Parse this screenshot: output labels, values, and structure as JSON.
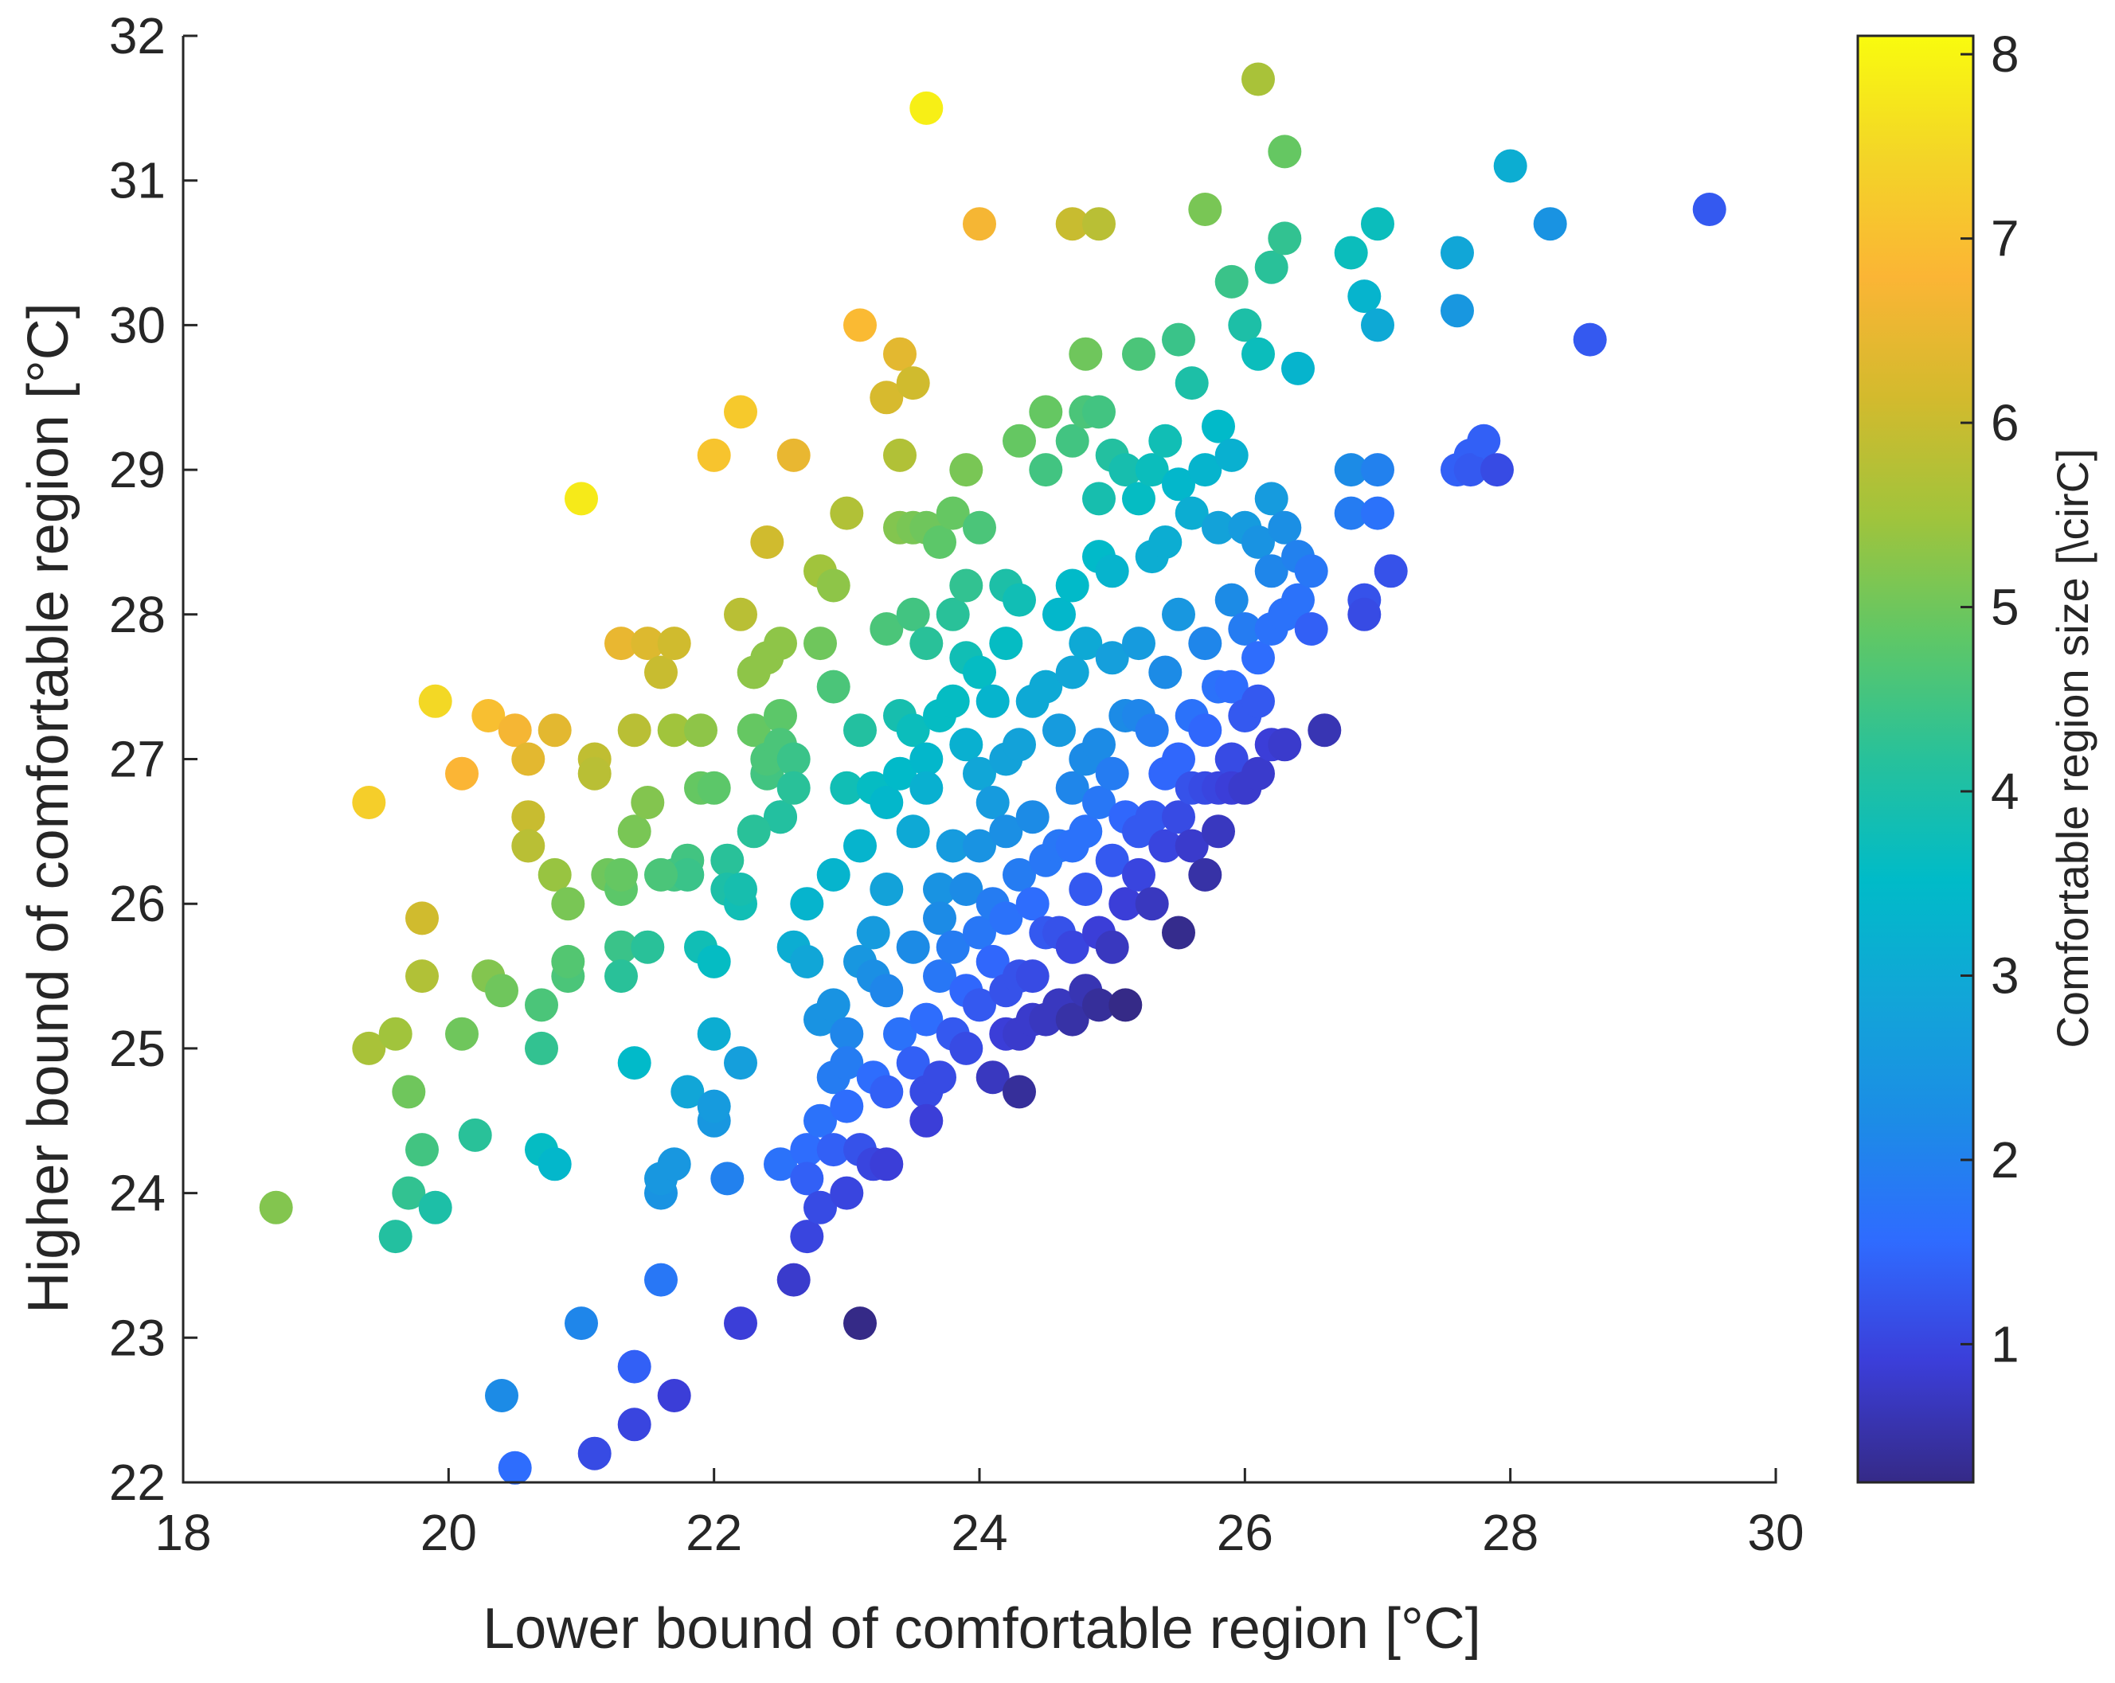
{
  "chart_data": {
    "type": "scatter",
    "title": "",
    "xlabel": "Lower bound of comfortable region [°C]",
    "ylabel": "Higher bound of comfortable region [°C]",
    "xlim": [
      18,
      30
    ],
    "ylim": [
      22,
      32
    ],
    "xticks": [
      "18",
      "20",
      "22",
      "24",
      "26",
      "28",
      "30"
    ],
    "yticks": [
      "22",
      "23",
      "24",
      "25",
      "26",
      "27",
      "28",
      "29",
      "30",
      "31",
      "32"
    ],
    "grid": false,
    "colorbar": {
      "label": "Comfortable region size [\\cirC]",
      "range": [
        0.25,
        8.1
      ],
      "ticks": [
        "1",
        "2",
        "3",
        "4",
        "5",
        "6",
        "7",
        "8"
      ],
      "colors": [
        "#352A87",
        "#3B3ED9",
        "#2F6BFF",
        "#1C8CE6",
        "#12A5D8",
        "#00BBC8",
        "#27C19B",
        "#5EC767",
        "#A0C43C",
        "#D3BA2D",
        "#FBB535",
        "#F3D527",
        "#F9FB0E"
      ]
    },
    "points": [
      [
        18.7,
        23.9
      ],
      [
        19.4,
        26.7
      ],
      [
        19.4,
        25.0
      ],
      [
        19.6,
        25.1
      ],
      [
        19.6,
        23.7
      ],
      [
        19.7,
        24.7
      ],
      [
        19.7,
        24.0
      ],
      [
        19.8,
        25.9
      ],
      [
        19.8,
        25.5
      ],
      [
        19.8,
        24.3
      ],
      [
        19.9,
        27.4
      ],
      [
        19.9,
        23.9
      ],
      [
        20.1,
        26.9
      ],
      [
        20.1,
        25.1
      ],
      [
        20.2,
        24.4
      ],
      [
        20.3,
        27.3
      ],
      [
        20.3,
        25.5
      ],
      [
        20.4,
        25.4
      ],
      [
        20.4,
        22.6
      ],
      [
        20.5,
        22.1
      ],
      [
        20.5,
        27.2
      ],
      [
        20.6,
        27.0
      ],
      [
        20.6,
        26.6
      ],
      [
        20.6,
        26.4
      ],
      [
        20.7,
        25.3
      ],
      [
        20.7,
        25.0
      ],
      [
        20.7,
        24.3
      ],
      [
        20.8,
        27.2
      ],
      [
        20.8,
        26.2
      ],
      [
        20.8,
        24.2
      ],
      [
        20.9,
        26.0
      ],
      [
        20.9,
        25.5
      ],
      [
        20.9,
        25.6
      ],
      [
        21.0,
        23.1
      ],
      [
        21.0,
        28.8
      ],
      [
        21.1,
        27.0
      ],
      [
        21.1,
        26.9
      ],
      [
        21.1,
        22.2
      ],
      [
        21.2,
        26.2
      ],
      [
        21.3,
        27.8
      ],
      [
        21.3,
        25.7
      ],
      [
        21.3,
        25.5
      ],
      [
        21.3,
        26.1
      ],
      [
        21.4,
        22.4
      ],
      [
        21.4,
        24.9
      ],
      [
        21.4,
        27.2
      ],
      [
        21.4,
        26.5
      ],
      [
        21.4,
        22.8
      ],
      [
        21.5,
        26.7
      ],
      [
        21.5,
        27.8
      ],
      [
        21.5,
        25.7
      ],
      [
        21.6,
        27.6
      ],
      [
        21.6,
        23.4
      ],
      [
        21.6,
        24.0
      ],
      [
        21.6,
        24.1
      ],
      [
        21.7,
        27.8
      ],
      [
        21.7,
        22.6
      ],
      [
        21.7,
        27.2
      ],
      [
        21.7,
        26.2
      ],
      [
        21.7,
        24.2
      ],
      [
        21.8,
        26.3
      ],
      [
        21.8,
        26.2
      ],
      [
        21.8,
        24.7
      ],
      [
        21.9,
        26.8
      ],
      [
        21.9,
        25.7
      ],
      [
        21.9,
        27.2
      ],
      [
        22.0,
        26.8
      ],
      [
        22.0,
        25.6
      ],
      [
        22.0,
        25.1
      ],
      [
        22.0,
        24.5
      ],
      [
        22.0,
        24.6
      ],
      [
        22.0,
        29.1
      ],
      [
        22.1,
        26.3
      ],
      [
        22.1,
        26.1
      ],
      [
        22.1,
        24.1
      ],
      [
        22.2,
        29.4
      ],
      [
        22.2,
        26.0
      ],
      [
        22.2,
        26.1
      ],
      [
        22.2,
        24.9
      ],
      [
        22.2,
        28.0
      ],
      [
        22.2,
        23.1
      ],
      [
        22.3,
        27.2
      ],
      [
        22.3,
        27.6
      ],
      [
        22.4,
        26.9
      ],
      [
        22.4,
        27.7
      ],
      [
        22.4,
        27.0
      ],
      [
        22.4,
        28.5
      ],
      [
        22.5,
        26.6
      ],
      [
        22.5,
        27.3
      ],
      [
        22.5,
        27.8
      ],
      [
        22.5,
        27.1
      ],
      [
        22.5,
        26.6
      ],
      [
        22.5,
        24.2
      ],
      [
        22.6,
        29.1
      ],
      [
        22.6,
        27.0
      ],
      [
        22.6,
        26.8
      ],
      [
        22.6,
        25.7
      ],
      [
        22.6,
        23.4
      ],
      [
        22.7,
        26.0
      ],
      [
        22.7,
        25.6
      ],
      [
        22.7,
        24.3
      ],
      [
        22.7,
        24.1
      ],
      [
        22.7,
        23.7
      ],
      [
        22.8,
        28.3
      ],
      [
        22.8,
        27.8
      ],
      [
        22.8,
        25.2
      ],
      [
        22.8,
        24.5
      ],
      [
        22.8,
        23.9
      ],
      [
        22.9,
        27.5
      ],
      [
        22.9,
        28.2
      ],
      [
        22.9,
        26.2
      ],
      [
        22.9,
        25.3
      ],
      [
        22.9,
        24.3
      ],
      [
        22.9,
        24.8
      ],
      [
        23.0,
        28.7
      ],
      [
        23.0,
        26.8
      ],
      [
        23.0,
        25.1
      ],
      [
        23.0,
        24.9
      ],
      [
        23.0,
        24.0
      ],
      [
        23.0,
        24.6
      ],
      [
        23.1,
        30.0
      ],
      [
        23.1,
        27.2
      ],
      [
        23.1,
        26.4
      ],
      [
        23.1,
        25.6
      ],
      [
        23.1,
        24.3
      ],
      [
        23.1,
        23.1
      ],
      [
        23.2,
        26.8
      ],
      [
        23.2,
        25.8
      ],
      [
        23.2,
        25.5
      ],
      [
        23.2,
        24.8
      ],
      [
        23.2,
        24.2
      ],
      [
        23.3,
        29.5
      ],
      [
        23.3,
        27.9
      ],
      [
        23.3,
        26.7
      ],
      [
        23.3,
        26.1
      ],
      [
        23.3,
        25.4
      ],
      [
        23.3,
        24.7
      ],
      [
        23.3,
        24.2
      ],
      [
        23.4,
        29.8
      ],
      [
        23.4,
        29.1
      ],
      [
        23.4,
        28.6
      ],
      [
        23.4,
        27.3
      ],
      [
        23.4,
        26.9
      ],
      [
        23.4,
        25.1
      ],
      [
        23.5,
        29.6
      ],
      [
        23.5,
        28.6
      ],
      [
        23.5,
        28.0
      ],
      [
        23.5,
        27.2
      ],
      [
        23.5,
        26.5
      ],
      [
        23.5,
        25.7
      ],
      [
        23.5,
        24.9
      ],
      [
        23.6,
        31.5
      ],
      [
        23.6,
        28.6
      ],
      [
        23.6,
        27.8
      ],
      [
        23.6,
        27.0
      ],
      [
        23.6,
        26.8
      ],
      [
        23.6,
        25.2
      ],
      [
        23.6,
        24.7
      ],
      [
        23.6,
        24.5
      ],
      [
        23.7,
        28.5
      ],
      [
        23.7,
        27.3
      ],
      [
        23.7,
        26.1
      ],
      [
        23.7,
        25.9
      ],
      [
        23.7,
        25.5
      ],
      [
        23.7,
        24.8
      ],
      [
        23.8,
        28.7
      ],
      [
        23.8,
        28.0
      ],
      [
        23.8,
        27.4
      ],
      [
        23.8,
        26.4
      ],
      [
        23.8,
        25.7
      ],
      [
        23.8,
        25.1
      ],
      [
        23.9,
        29.0
      ],
      [
        23.9,
        28.2
      ],
      [
        23.9,
        27.7
      ],
      [
        23.9,
        27.1
      ],
      [
        23.9,
        26.1
      ],
      [
        23.9,
        25.4
      ],
      [
        23.9,
        25.0
      ],
      [
        24.0,
        30.7
      ],
      [
        24.0,
        28.6
      ],
      [
        24.0,
        27.6
      ],
      [
        24.0,
        26.9
      ],
      [
        24.0,
        26.4
      ],
      [
        24.0,
        25.8
      ],
      [
        24.0,
        25.3
      ],
      [
        24.1,
        27.4
      ],
      [
        24.1,
        26.7
      ],
      [
        24.1,
        26.0
      ],
      [
        24.1,
        25.6
      ],
      [
        24.1,
        24.8
      ],
      [
        24.2,
        28.2
      ],
      [
        24.2,
        27.8
      ],
      [
        24.2,
        27.0
      ],
      [
        24.2,
        26.5
      ],
      [
        24.2,
        25.9
      ],
      [
        24.2,
        25.4
      ],
      [
        24.2,
        25.1
      ],
      [
        24.3,
        29.2
      ],
      [
        24.3,
        28.1
      ],
      [
        24.3,
        27.1
      ],
      [
        24.3,
        26.2
      ],
      [
        24.3,
        25.5
      ],
      [
        24.3,
        25.1
      ],
      [
        24.3,
        24.7
      ],
      [
        24.4,
        27.4
      ],
      [
        24.4,
        26.6
      ],
      [
        24.4,
        26.0
      ],
      [
        24.4,
        25.5
      ],
      [
        24.4,
        25.2
      ],
      [
        24.5,
        29.0
      ],
      [
        24.5,
        29.4
      ],
      [
        24.5,
        27.5
      ],
      [
        24.5,
        26.3
      ],
      [
        24.5,
        25.8
      ],
      [
        24.5,
        25.2
      ],
      [
        24.6,
        28.0
      ],
      [
        24.6,
        27.2
      ],
      [
        24.6,
        26.4
      ],
      [
        24.6,
        25.8
      ],
      [
        24.6,
        25.3
      ],
      [
        24.7,
        30.7
      ],
      [
        24.7,
        29.2
      ],
      [
        24.7,
        28.2
      ],
      [
        24.7,
        27.6
      ],
      [
        24.7,
        26.8
      ],
      [
        24.7,
        26.4
      ],
      [
        24.7,
        25.7
      ],
      [
        24.7,
        25.2
      ],
      [
        24.8,
        29.8
      ],
      [
        24.8,
        29.4
      ],
      [
        24.8,
        27.8
      ],
      [
        24.8,
        27.0
      ],
      [
        24.8,
        26.5
      ],
      [
        24.8,
        26.1
      ],
      [
        24.8,
        25.4
      ],
      [
        24.9,
        30.7
      ],
      [
        24.9,
        29.4
      ],
      [
        24.9,
        28.8
      ],
      [
        24.9,
        28.4
      ],
      [
        24.9,
        27.1
      ],
      [
        24.9,
        26.7
      ],
      [
        24.9,
        25.8
      ],
      [
        24.9,
        25.3
      ],
      [
        25.0,
        29.1
      ],
      [
        25.0,
        28.3
      ],
      [
        25.0,
        27.7
      ],
      [
        25.0,
        26.9
      ],
      [
        25.0,
        26.3
      ],
      [
        25.0,
        25.7
      ],
      [
        25.1,
        29.0
      ],
      [
        25.1,
        27.3
      ],
      [
        25.1,
        26.6
      ],
      [
        25.1,
        26.0
      ],
      [
        25.1,
        25.3
      ],
      [
        25.2,
        29.8
      ],
      [
        25.2,
        28.8
      ],
      [
        25.2,
        27.8
      ],
      [
        25.2,
        27.3
      ],
      [
        25.2,
        26.5
      ],
      [
        25.2,
        26.2
      ],
      [
        25.3,
        29.0
      ],
      [
        25.3,
        28.4
      ],
      [
        25.3,
        27.2
      ],
      [
        25.3,
        26.6
      ],
      [
        25.3,
        26.0
      ],
      [
        25.4,
        29.2
      ],
      [
        25.4,
        28.5
      ],
      [
        25.4,
        27.6
      ],
      [
        25.4,
        26.9
      ],
      [
        25.4,
        26.4
      ],
      [
        25.5,
        29.9
      ],
      [
        25.5,
        28.9
      ],
      [
        25.5,
        28.0
      ],
      [
        25.5,
        27.0
      ],
      [
        25.5,
        26.6
      ],
      [
        25.5,
        25.8
      ],
      [
        25.6,
        29.6
      ],
      [
        25.6,
        28.7
      ],
      [
        25.6,
        27.3
      ],
      [
        25.6,
        26.8
      ],
      [
        25.6,
        26.4
      ],
      [
        25.7,
        30.8
      ],
      [
        25.7,
        29.0
      ],
      [
        25.7,
        27.8
      ],
      [
        25.7,
        27.2
      ],
      [
        25.7,
        26.8
      ],
      [
        25.7,
        26.2
      ],
      [
        25.8,
        29.3
      ],
      [
        25.8,
        28.6
      ],
      [
        25.8,
        27.5
      ],
      [
        25.8,
        26.8
      ],
      [
        25.8,
        26.5
      ],
      [
        25.9,
        30.3
      ],
      [
        25.9,
        29.1
      ],
      [
        25.9,
        28.1
      ],
      [
        25.9,
        27.5
      ],
      [
        25.9,
        27.0
      ],
      [
        25.9,
        26.8
      ],
      [
        26.0,
        30.0
      ],
      [
        26.0,
        28.6
      ],
      [
        26.0,
        27.9
      ],
      [
        26.0,
        27.3
      ],
      [
        26.0,
        26.8
      ],
      [
        26.1,
        31.7
      ],
      [
        26.1,
        29.8
      ],
      [
        26.1,
        28.5
      ],
      [
        26.1,
        27.7
      ],
      [
        26.1,
        27.4
      ],
      [
        26.1,
        26.9
      ],
      [
        26.2,
        30.4
      ],
      [
        26.2,
        28.8
      ],
      [
        26.2,
        28.3
      ],
      [
        26.2,
        27.9
      ],
      [
        26.2,
        27.1
      ],
      [
        26.3,
        31.2
      ],
      [
        26.3,
        30.6
      ],
      [
        26.3,
        28.6
      ],
      [
        26.3,
        28.0
      ],
      [
        26.3,
        27.1
      ],
      [
        26.4,
        29.7
      ],
      [
        26.4,
        28.4
      ],
      [
        26.4,
        28.1
      ],
      [
        26.5,
        28.3
      ],
      [
        26.5,
        27.9
      ],
      [
        26.6,
        27.2
      ],
      [
        26.8,
        30.5
      ],
      [
        26.8,
        29.0
      ],
      [
        26.8,
        28.7
      ],
      [
        26.9,
        30.2
      ],
      [
        26.9,
        28.1
      ],
      [
        26.9,
        28.0
      ],
      [
        27.0,
        30.7
      ],
      [
        27.0,
        30.0
      ],
      [
        27.0,
        29.0
      ],
      [
        27.0,
        28.7
      ],
      [
        27.1,
        28.3
      ],
      [
        27.6,
        30.5
      ],
      [
        27.6,
        30.1
      ],
      [
        27.6,
        29.0
      ],
      [
        27.7,
        29.1
      ],
      [
        27.7,
        29.0
      ],
      [
        27.8,
        29.2
      ],
      [
        27.9,
        29.0
      ],
      [
        28.0,
        31.1
      ],
      [
        28.3,
        30.7
      ],
      [
        28.6,
        29.9
      ],
      [
        29.5,
        30.8
      ],
      [
        21.3,
        26.2
      ],
      [
        21.6,
        26.2
      ],
      [
        22.3,
        26.5
      ]
    ]
  }
}
